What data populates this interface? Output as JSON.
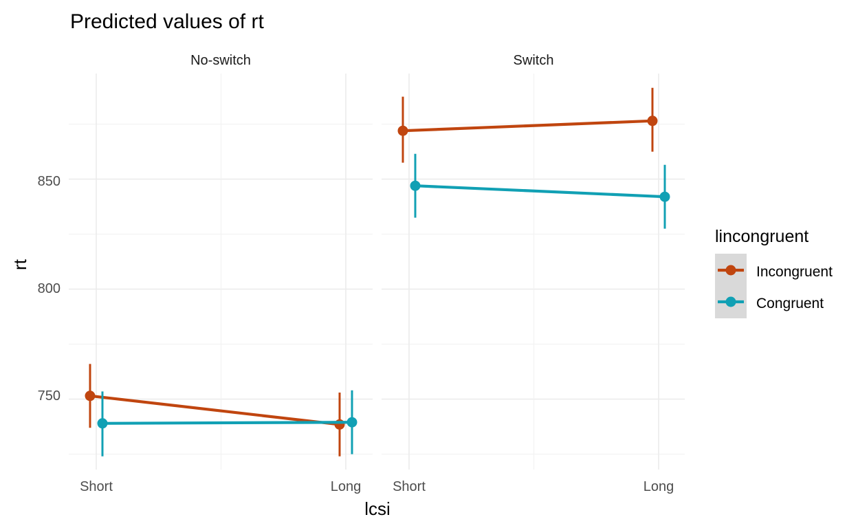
{
  "chart_data": {
    "type": "line",
    "title": "Predicted values of rt",
    "xlabel": "lcsi",
    "ylabel": "rt",
    "categories": [
      "Short",
      "Long"
    ],
    "ylim": [
      718,
      898
    ],
    "yticks": [
      750,
      800,
      850
    ],
    "grid": true,
    "legend": {
      "title": "lincongruent",
      "position": "right",
      "items": [
        "Incongruent",
        "Congruent"
      ]
    },
    "colors": {
      "Incongruent": "#c0450f",
      "Congruent": "#11a0b4"
    },
    "panels": [
      {
        "label": "No-switch",
        "series": [
          {
            "name": "Incongruent",
            "values": [
              751.5,
              738.5
            ],
            "lower": [
              737,
              724
            ],
            "upper": [
              766,
              753
            ]
          },
          {
            "name": "Congruent",
            "values": [
              739,
              739.5
            ],
            "lower": [
              724,
              725
            ],
            "upper": [
              753.5,
              754
            ]
          }
        ]
      },
      {
        "label": "Switch",
        "series": [
          {
            "name": "Incongruent",
            "values": [
              872,
              876.5
            ],
            "lower": [
              857.5,
              862.5
            ],
            "upper": [
              887.5,
              891.5
            ]
          },
          {
            "name": "Congruent",
            "values": [
              847,
              842
            ],
            "lower": [
              832.5,
              827.5
            ],
            "upper": [
              861.5,
              856.5
            ]
          }
        ]
      }
    ]
  }
}
